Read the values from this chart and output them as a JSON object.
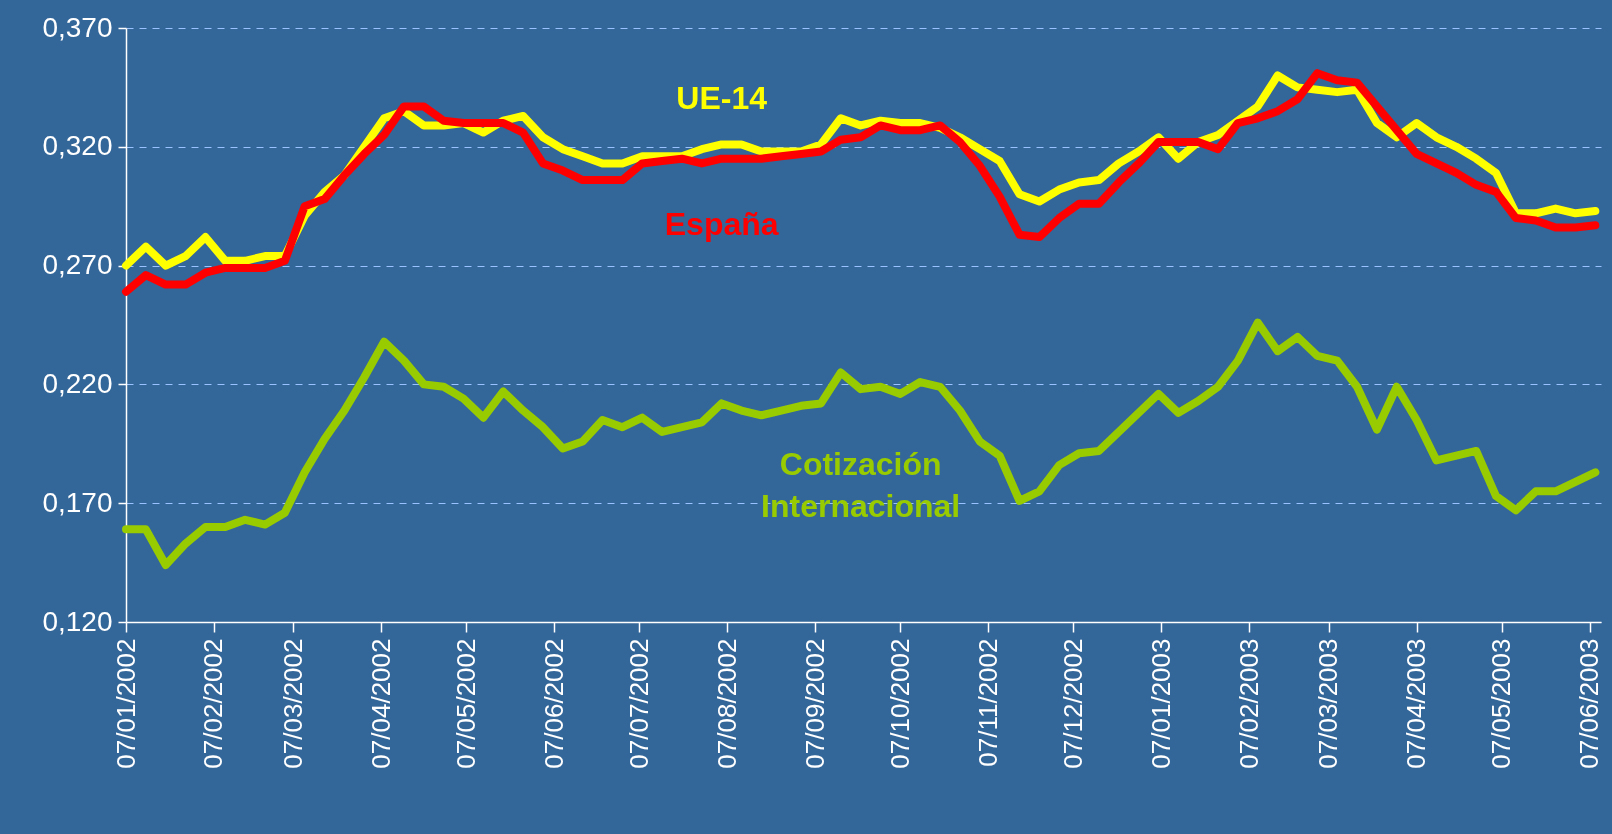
{
  "chart_data": {
    "type": "line",
    "x": [
      "2002-01-07",
      "2002-01-14",
      "2002-01-21",
      "2002-01-28",
      "2002-02-04",
      "2002-02-11",
      "2002-02-18",
      "2002-02-25",
      "2002-03-04",
      "2002-03-11",
      "2002-03-18",
      "2002-03-25",
      "2002-04-01",
      "2002-04-08",
      "2002-04-15",
      "2002-04-22",
      "2002-04-29",
      "2002-05-06",
      "2002-05-13",
      "2002-05-20",
      "2002-05-27",
      "2002-06-03",
      "2002-06-10",
      "2002-06-17",
      "2002-06-24",
      "2002-07-01",
      "2002-07-08",
      "2002-07-15",
      "2002-07-22",
      "2002-07-29",
      "2002-08-05",
      "2002-08-12",
      "2002-08-19",
      "2002-08-26",
      "2002-09-02",
      "2002-09-09",
      "2002-09-16",
      "2002-09-23",
      "2002-09-30",
      "2002-10-07",
      "2002-10-14",
      "2002-10-21",
      "2002-10-28",
      "2002-11-04",
      "2002-11-11",
      "2002-11-18",
      "2002-11-25",
      "2002-12-02",
      "2002-12-09",
      "2002-12-16",
      "2002-12-23",
      "2002-12-30",
      "2003-01-06",
      "2003-01-13",
      "2003-01-20",
      "2003-01-27",
      "2003-02-03",
      "2003-02-10",
      "2003-02-17",
      "2003-02-24",
      "2003-03-03",
      "2003-03-10",
      "2003-03-17",
      "2003-03-24",
      "2003-03-31",
      "2003-04-07",
      "2003-04-14",
      "2003-04-21",
      "2003-04-28",
      "2003-05-05",
      "2003-05-12",
      "2003-05-19",
      "2003-05-26",
      "2003-06-02",
      "2003-06-09"
    ],
    "series": [
      {
        "name": "UE-14",
        "color": "#ffff00",
        "values": [
          0.27,
          0.278,
          0.27,
          0.274,
          0.282,
          0.272,
          0.272,
          0.274,
          0.274,
          0.291,
          0.301,
          0.308,
          0.32,
          0.332,
          0.335,
          0.329,
          0.329,
          0.33,
          0.326,
          0.331,
          0.333,
          0.324,
          0.319,
          0.316,
          0.313,
          0.313,
          0.316,
          0.316,
          0.316,
          0.319,
          0.321,
          0.321,
          0.318,
          0.318,
          0.318,
          0.321,
          0.332,
          0.329,
          0.331,
          0.33,
          0.33,
          0.328,
          0.324,
          0.319,
          0.314,
          0.3,
          0.297,
          0.302,
          0.305,
          0.306,
          0.313,
          0.318,
          0.324,
          0.315,
          0.322,
          0.325,
          0.331,
          0.337,
          0.35,
          0.345,
          0.344,
          0.343,
          0.344,
          0.33,
          0.324,
          0.33,
          0.324,
          0.32,
          0.315,
          0.309,
          0.292,
          0.292,
          0.294,
          0.292,
          0.293
        ]
      },
      {
        "name": "España",
        "color": "#ff0000",
        "values": [
          0.259,
          0.266,
          0.262,
          0.262,
          0.267,
          0.269,
          0.269,
          0.269,
          0.272,
          0.295,
          0.298,
          0.308,
          0.317,
          0.325,
          0.337,
          0.337,
          0.331,
          0.33,
          0.33,
          0.33,
          0.326,
          0.313,
          0.31,
          0.306,
          0.306,
          0.306,
          0.313,
          0.314,
          0.315,
          0.313,
          0.315,
          0.315,
          0.315,
          0.316,
          0.317,
          0.318,
          0.323,
          0.324,
          0.329,
          0.327,
          0.327,
          0.329,
          0.322,
          0.312,
          0.299,
          0.283,
          0.282,
          0.29,
          0.296,
          0.296,
          0.305,
          0.313,
          0.322,
          0.322,
          0.322,
          0.319,
          0.33,
          0.332,
          0.335,
          0.34,
          0.351,
          0.348,
          0.347,
          0.337,
          0.327,
          0.317,
          0.313,
          0.309,
          0.304,
          0.301,
          0.29,
          0.289,
          0.286,
          0.286,
          0.287
        ]
      },
      {
        "name": "Cotización Internacional",
        "color": "#99cc00",
        "values": [
          0.159,
          0.159,
          0.144,
          0.153,
          0.16,
          0.16,
          0.163,
          0.161,
          0.166,
          0.183,
          0.197,
          0.209,
          0.223,
          0.238,
          0.23,
          0.22,
          0.219,
          0.214,
          0.206,
          0.217,
          0.209,
          0.202,
          0.193,
          0.196,
          0.205,
          0.202,
          0.206,
          0.2,
          0.202,
          0.204,
          0.212,
          0.209,
          0.207,
          0.209,
          0.211,
          0.212,
          0.225,
          0.218,
          0.219,
          0.216,
          0.221,
          0.219,
          0.209,
          0.196,
          0.19,
          0.171,
          0.175,
          0.186,
          0.191,
          0.192,
          0.2,
          0.208,
          0.216,
          0.208,
          0.213,
          0.219,
          0.23,
          0.246,
          0.234,
          0.24,
          0.232,
          0.23,
          0.219,
          0.201,
          0.219,
          0.205,
          0.188,
          0.19,
          0.192,
          0.173,
          0.167,
          0.175,
          0.175,
          0.179,
          0.183
        ]
      }
    ],
    "xlim": [
      "2002-01-07",
      "2003-06-11"
    ],
    "xticks": [
      {
        "value": "2002-01-07",
        "label": "07/01/2002"
      },
      {
        "value": "2002-02-07",
        "label": "07/02/2002"
      },
      {
        "value": "2002-03-07",
        "label": "07/03/2002"
      },
      {
        "value": "2002-04-07",
        "label": "07/04/2002"
      },
      {
        "value": "2002-05-07",
        "label": "07/05/2002"
      },
      {
        "value": "2002-06-07",
        "label": "07/06/2002"
      },
      {
        "value": "2002-07-07",
        "label": "07/07/2002"
      },
      {
        "value": "2002-08-07",
        "label": "07/08/2002"
      },
      {
        "value": "2002-09-07",
        "label": "07/09/2002"
      },
      {
        "value": "2002-10-07",
        "label": "07/10/2002"
      },
      {
        "value": "2002-11-07",
        "label": "07/11/2002"
      },
      {
        "value": "2002-12-07",
        "label": "07/12/2002"
      },
      {
        "value": "2003-01-07",
        "label": "07/01/2003"
      },
      {
        "value": "2003-02-07",
        "label": "07/02/2003"
      },
      {
        "value": "2003-03-07",
        "label": "07/03/2003"
      },
      {
        "value": "2003-04-07",
        "label": "07/04/2003"
      },
      {
        "value": "2003-05-07",
        "label": "07/05/2003"
      },
      {
        "value": "2003-06-07",
        "label": "07/06/2003"
      }
    ],
    "ylim": [
      0.12,
      0.37
    ],
    "yticks": [
      {
        "value": 0.12,
        "label": "0,120"
      },
      {
        "value": 0.17,
        "label": "0,170"
      },
      {
        "value": 0.22,
        "label": "0,220"
      },
      {
        "value": 0.27,
        "label": "0,270"
      },
      {
        "value": 0.32,
        "label": "0,320"
      },
      {
        "value": 0.37,
        "label": "0,370"
      }
    ],
    "grid": "y",
    "legend": false,
    "marker": "none",
    "line_style": "solid"
  }
}
